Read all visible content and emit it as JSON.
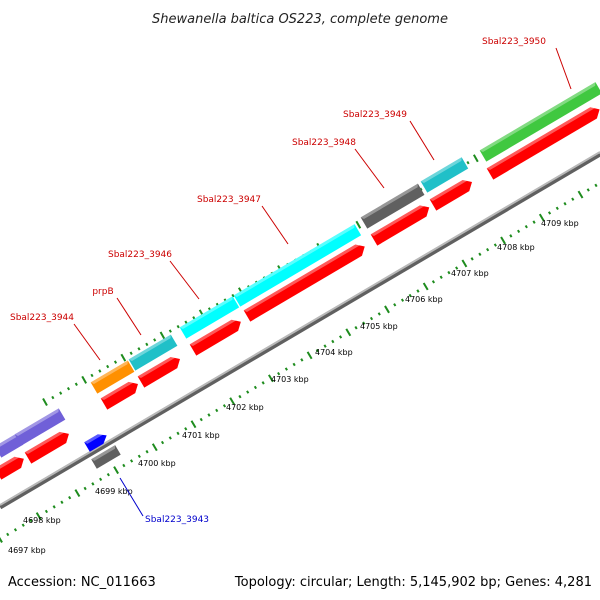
{
  "title": "Shewanella baltica OS223, complete genome",
  "footer": {
    "accession": "Accession: NC_011663",
    "summary": "Topology: circular; Length: 5,145,902 bp; Genes: 4,281"
  },
  "colors": {
    "cds": "#ff0000",
    "backbone": "#808080",
    "tick": "#1e8c1e",
    "label_red": "#cc0000",
    "label_blue": "#0000cc"
  },
  "scale_labels": [
    "4697 kbp",
    "4698 kbp",
    "4699 kbp",
    "4700 kbp",
    "4701 kbp",
    "4702 kbp",
    "4703 kbp",
    "4704 kbp",
    "4705 kbp",
    "4706 kbp",
    "4707 kbp",
    "4708 kbp",
    "4709 kbp"
  ],
  "gene_labels": [
    {
      "id": "sbal223-3950",
      "text": "Sbal223_3950",
      "color": "red"
    },
    {
      "id": "sbal223-3949",
      "text": "Sbal223_3949",
      "color": "red"
    },
    {
      "id": "sbal223-3948",
      "text": "Sbal223_3948",
      "color": "red"
    },
    {
      "id": "sbal223-3947",
      "text": "Sbal223_3947",
      "color": "red"
    },
    {
      "id": "sbal223-3946",
      "text": "Sbal223_3946",
      "color": "red"
    },
    {
      "id": "prpb",
      "text": "prpB",
      "color": "red"
    },
    {
      "id": "sbal223-3944",
      "text": "Sbal223_3944",
      "color": "red"
    },
    {
      "id": "sbal223-3943",
      "text": "Sbal223_3943",
      "color": "blue"
    }
  ],
  "feature_colors": {
    "upper_track": [
      "#7060d8",
      "#7060d8",
      "#ff9000",
      "#20c0c8",
      "#00ffff",
      "#00ffff",
      "#606060",
      "#20c0c8",
      "#40c840"
    ],
    "lower_track": [
      "#0000ff",
      "#606060"
    ]
  }
}
